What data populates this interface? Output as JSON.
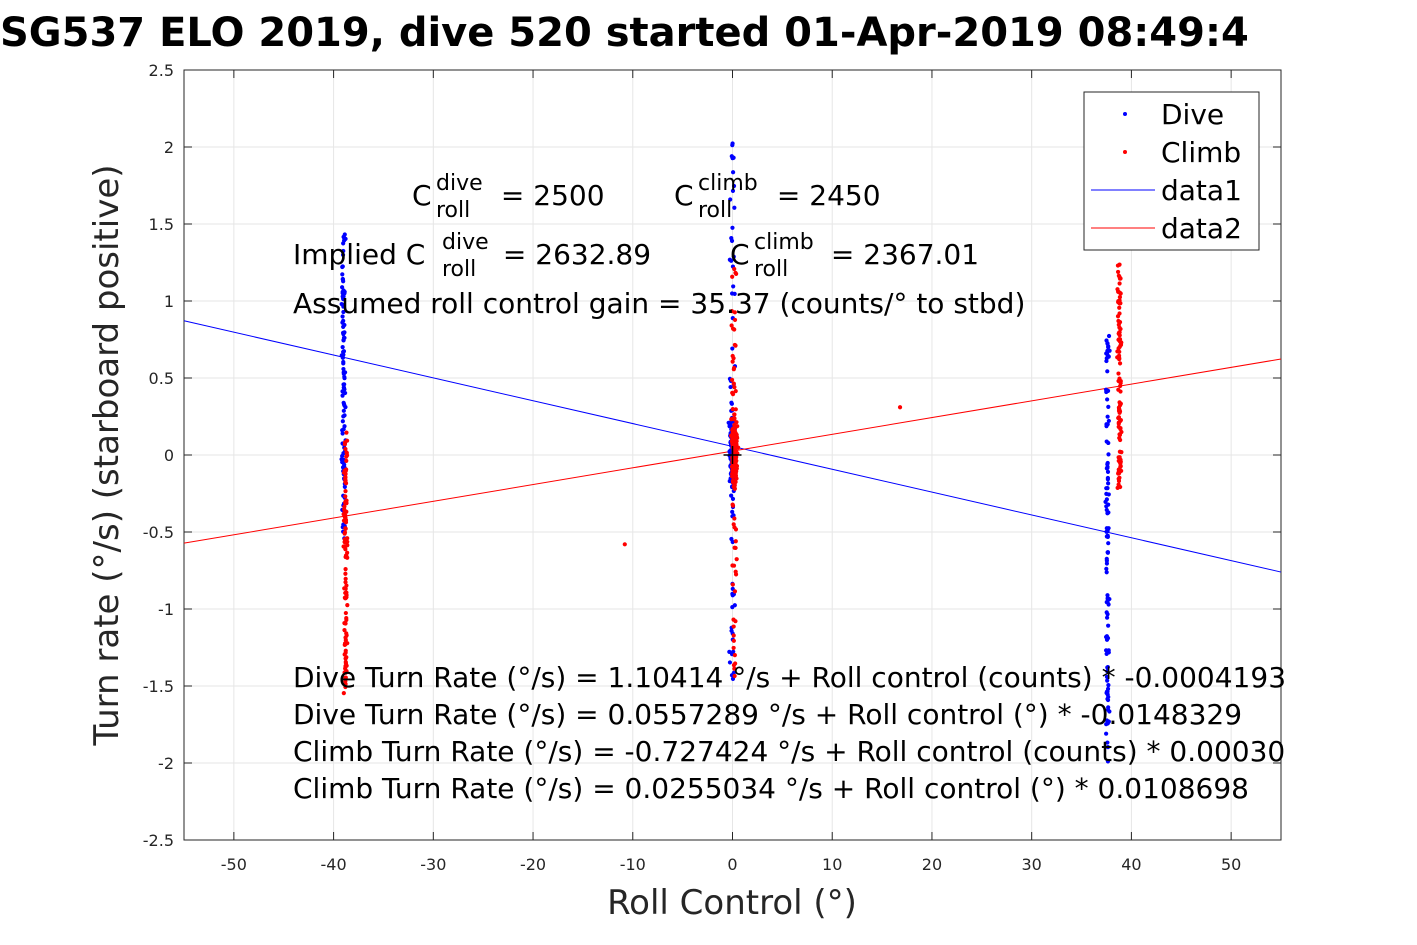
{
  "chart_data": {
    "type": "scatter",
    "title": "SG537 ELO 2019, dive 520 started 01-Apr-2019 08:49:4",
    "xlabel": "Roll Control (°)",
    "ylabel": "Turn rate (°/s) (starboard positive)",
    "xlim": [
      -55,
      55
    ],
    "ylim": [
      -2.5,
      2.5
    ],
    "xticks": [
      -50,
      -40,
      -30,
      -20,
      -10,
      0,
      10,
      20,
      30,
      40,
      50
    ],
    "yticks": [
      -2.5,
      -2,
      -1.5,
      -1,
      -0.5,
      0,
      0.5,
      1,
      1.5,
      2,
      2.5
    ],
    "xtick_labels": [
      "-50",
      "-40",
      "-30",
      "-20",
      "-10",
      "0",
      "10",
      "20",
      "30",
      "40",
      "50"
    ],
    "ytick_labels": [
      "-2.5",
      "-2",
      "-1.5",
      "-1",
      "-0.5",
      "0",
      "0.5",
      "1",
      "1.5",
      "2",
      "2.5"
    ],
    "grid": true,
    "legend_position": "top-right",
    "colors": {
      "dive": "#0000ff",
      "climb": "#ff0000",
      "text": "#000000",
      "axis": "#262626"
    },
    "legend": [
      {
        "label": "Dive",
        "marker": "dot",
        "color": "#0000ff"
      },
      {
        "label": "Climb",
        "marker": "dot",
        "color": "#ff0000"
      },
      {
        "label": "data1",
        "marker": "line",
        "color": "#0000ff"
      },
      {
        "label": "data2",
        "marker": "line",
        "color": "#ff0000"
      }
    ],
    "series": [
      {
        "name": "Dive",
        "kind": "points",
        "color": "#0000ff",
        "clusters": [
          {
            "x": -39.0,
            "y_range": [
              -0.55,
              1.45
            ]
          },
          {
            "x": 0.0,
            "y_range": [
              -1.55,
              2.05
            ]
          },
          {
            "x": 37.6,
            "y_range": [
              -2.0,
              0.8
            ]
          }
        ]
      },
      {
        "name": "Climb",
        "kind": "points",
        "color": "#ff0000",
        "clusters": [
          {
            "x": -38.8,
            "y_range": [
              -1.55,
              0.15
            ]
          },
          {
            "x": 0.2,
            "y_range": [
              -1.45,
              1.35
            ]
          },
          {
            "x": 38.8,
            "y_range": [
              -0.25,
              1.25
            ]
          }
        ],
        "outliers": [
          [
            -10.8,
            -0.58
          ],
          [
            16.8,
            0.31
          ]
        ]
      },
      {
        "name": "data1",
        "kind": "line",
        "color": "#0000ff",
        "x": [
          -55,
          55
        ],
        "intercept": 0.0557289,
        "slope": -0.0148329
      },
      {
        "name": "data2",
        "kind": "line",
        "color": "#ff0000",
        "x": [
          -55,
          55
        ],
        "intercept": 0.0255034,
        "slope": 0.0108698
      }
    ],
    "center_marker": {
      "x": 0,
      "y": 0,
      "symbol": "+"
    },
    "annotations": {
      "c_dive": {
        "C": "C",
        "sup": "dive",
        "sub": "roll",
        "rest": " = 2500"
      },
      "c_climb": {
        "C": "C",
        "sup": "climb",
        "sub": "roll",
        "rest": " = 2450"
      },
      "implied_dive": {
        "prefix": "Implied C",
        "sup": "dive",
        "sub": "roll",
        "rest": " = 2632.89"
      },
      "implied_climb": {
        "C": "C",
        "sup": "climb",
        "sub": "roll",
        "rest": " = 2367.01"
      },
      "gain": "Assumed roll control gain = 35.37 (counts/° to stbd)",
      "eq1": "Dive Turn Rate (°/s) = 1.10414 °/s + Roll control (counts) * -0.0004193",
      "eq2": "Dive Turn Rate (°/s) = 0.0557289 °/s + Roll control (°) * -0.0148329",
      "eq3": "Climb Turn Rate (°/s) = -0.727424 °/s + Roll control (counts) * 0.00030",
      "eq4": "Climb Turn Rate (°/s) = 0.0255034 °/s + Roll control (°) * 0.0108698"
    }
  }
}
